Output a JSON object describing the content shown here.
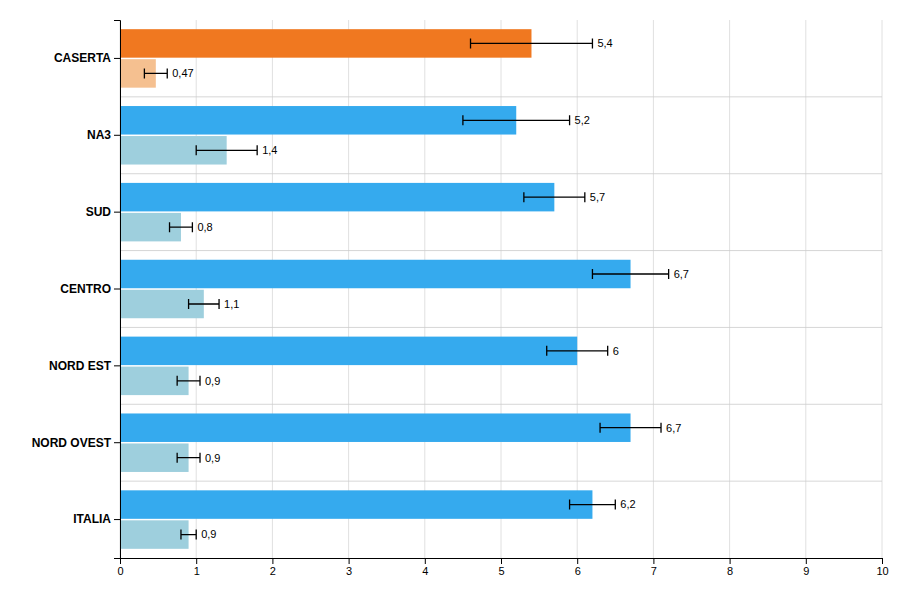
{
  "chart_data": {
    "type": "bar",
    "orientation": "horizontal",
    "categories": [
      "CASERTA",
      "NA3",
      "SUD",
      "CENTRO",
      "NORD EST",
      "NORD OVEST",
      "ITALIA"
    ],
    "series": [
      {
        "values": [
          5.4,
          5.2,
          5.7,
          6.7,
          6.0,
          6.7,
          6.2
        ],
        "errors": [
          0.8,
          0.7,
          0.4,
          0.5,
          0.4,
          0.4,
          0.3
        ],
        "value_labels": [
          "5,4",
          "5,2",
          "5,7",
          "6,7",
          "6",
          "6,7",
          "6,2"
        ],
        "colors": [
          "#F07820",
          "#35AAEE",
          "#35AAEE",
          "#35AAEE",
          "#35AAEE",
          "#35AAEE",
          "#35AAEE"
        ]
      },
      {
        "values": [
          0.47,
          1.4,
          0.8,
          1.1,
          0.9,
          0.9,
          0.9
        ],
        "errors": [
          0.15,
          0.4,
          0.15,
          0.2,
          0.15,
          0.15,
          0.1
        ],
        "value_labels": [
          "0,47",
          "1,4",
          "0,8",
          "1,1",
          "0,9",
          "0,9",
          "0,9"
        ],
        "colors": [
          "#F5C090",
          "#9ECFDD",
          "#9ECFDD",
          "#9ECFDD",
          "#9ECFDD",
          "#9ECFDD",
          "#9ECFDD"
        ]
      }
    ],
    "xlim": [
      0,
      10
    ],
    "xticks": [
      0,
      1,
      2,
      3,
      4,
      5,
      6,
      7,
      8,
      9,
      10
    ],
    "grid": true,
    "data_labels": true
  }
}
